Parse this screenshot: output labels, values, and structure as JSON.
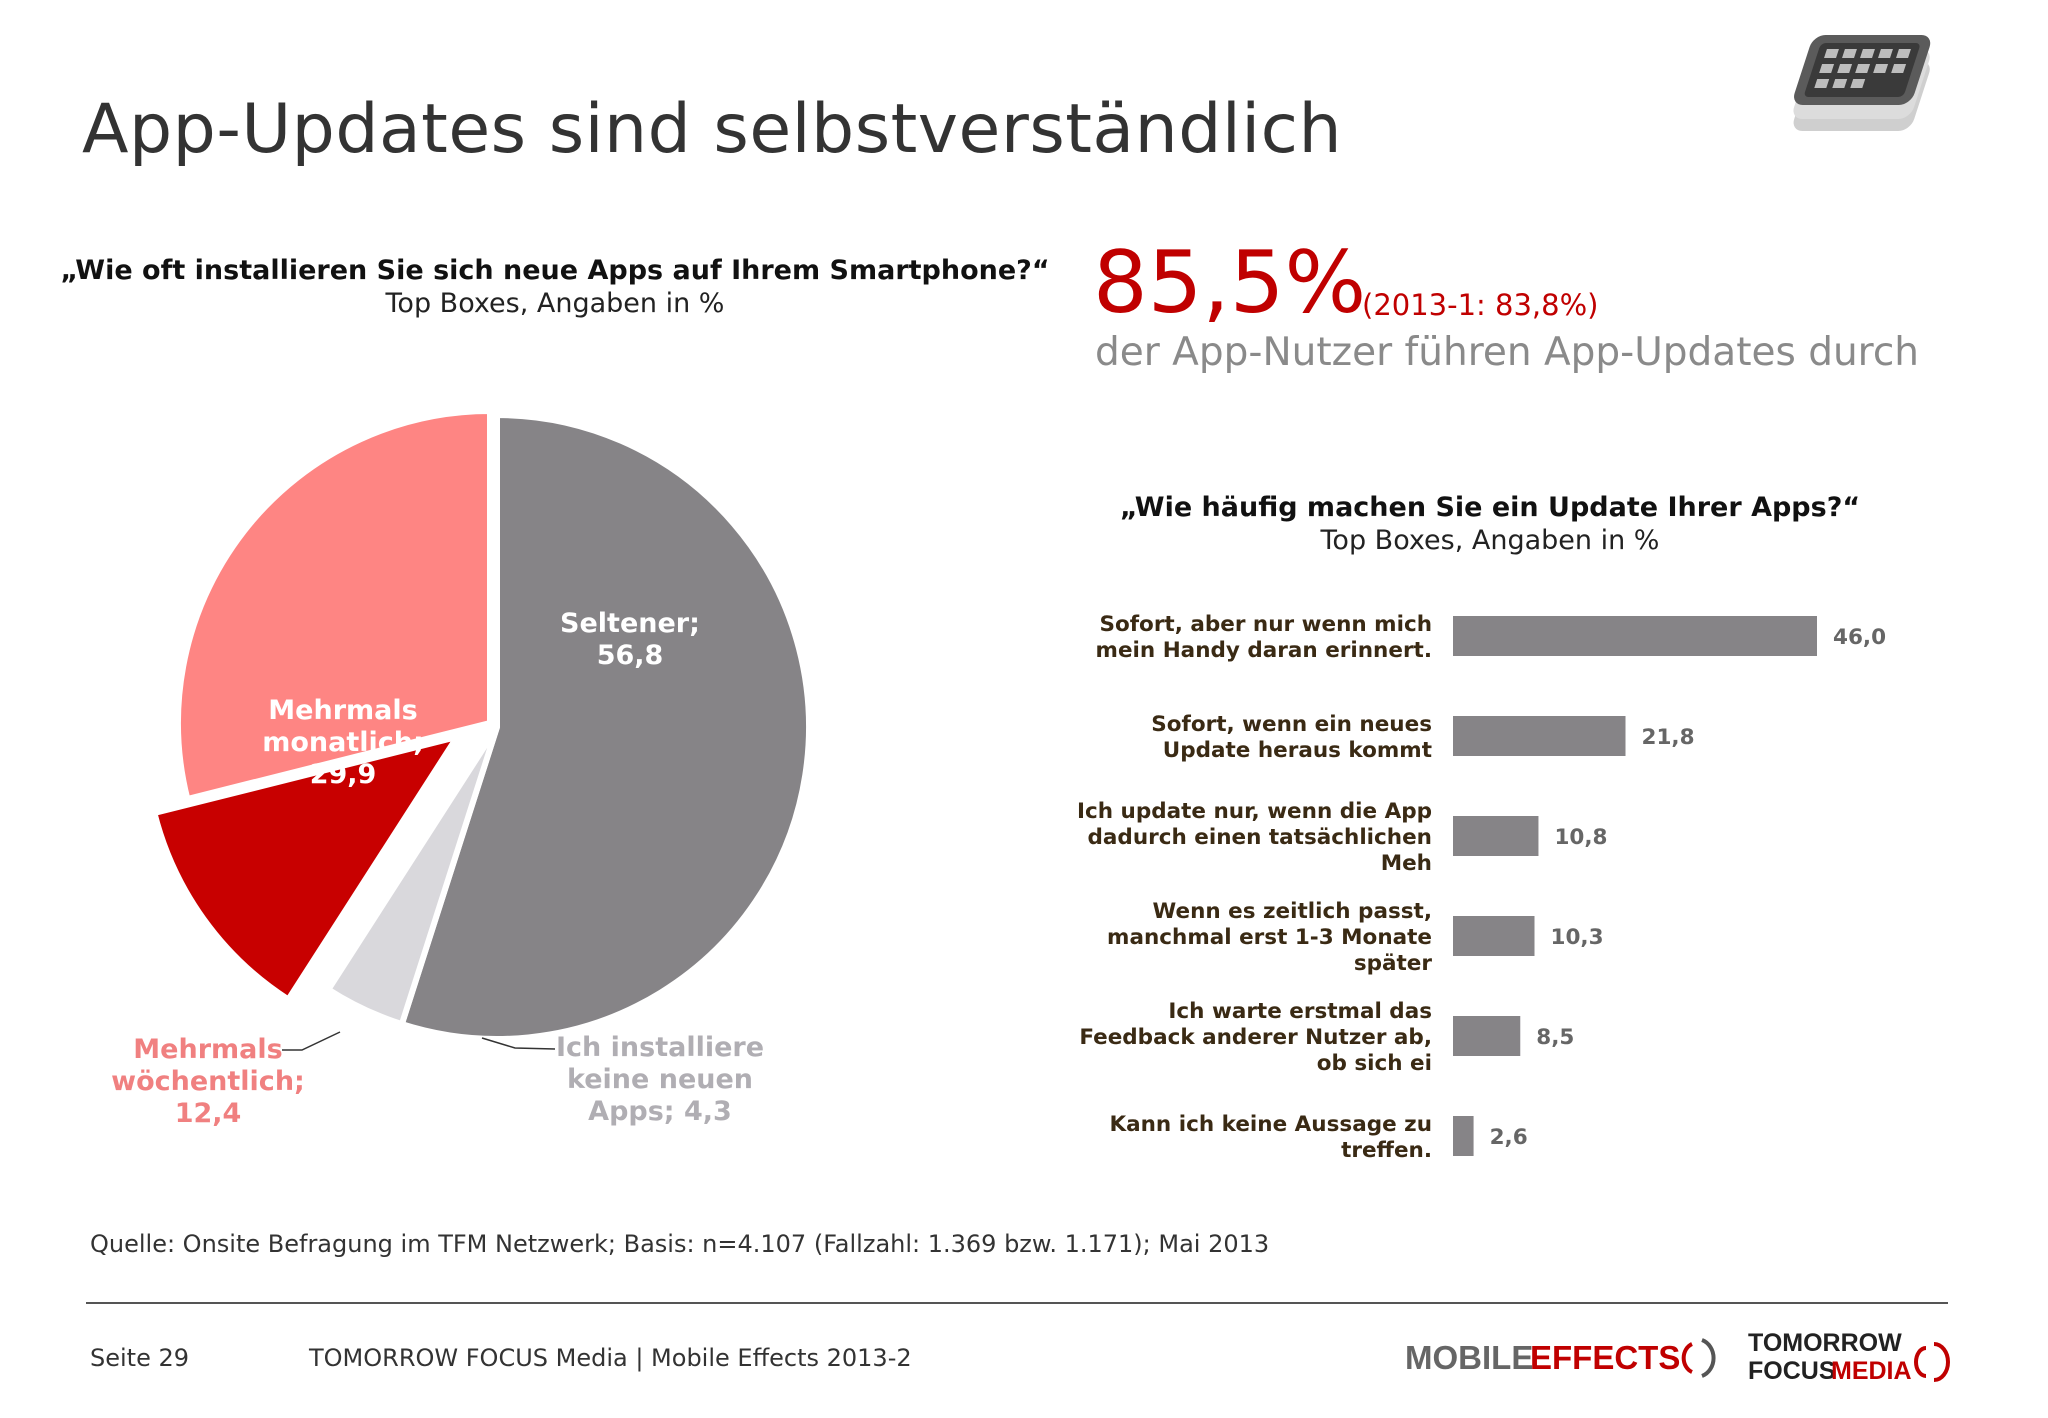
{
  "title": "App-Updates sind selbstverständlich",
  "pie_question": {
    "title": "„Wie oft installieren Sie sich neue Apps auf Ihrem Smartphone?“",
    "subtitle": "Top Boxes, Angaben in %"
  },
  "kpi": {
    "value": "85,5%",
    "compare": "(2013-1: 83,8%)",
    "description": "der App-Nutzer führen App-Updates durch"
  },
  "bar_question": {
    "title": "„Wie häufig machen Sie ein Update Ihrer Apps?“",
    "subtitle": "Top Boxes, Angaben in %"
  },
  "chart_data": [
    {
      "type": "pie",
      "unit": "%",
      "slices": [
        {
          "lines": [
            "Seltener;",
            "56,8"
          ],
          "value": 56.8,
          "color": "#868487",
          "label_color": "#ffffff"
        },
        {
          "lines": [
            "Ich installiere",
            "keine neuen",
            "Apps; 4,3"
          ],
          "value": 4.3,
          "color": "#d9d8dc",
          "label_color": "#b0aeb3"
        },
        {
          "lines": [
            "Mehrmals",
            "wöchentlich;",
            "12,4"
          ],
          "value": 12.4,
          "color": "#c80000",
          "label_color": "#f08080"
        },
        {
          "lines": [
            "Mehrmals",
            "monatlich;",
            "29,9"
          ],
          "value": 29.9,
          "color": "#fe8583",
          "label_color": "#ffffff"
        }
      ]
    },
    {
      "type": "bar",
      "orientation": "horizontal",
      "unit": "%",
      "bar_color": "#868487",
      "categories": [
        [
          "Sofort, aber nur wenn mich",
          "mein Handy daran erinnert."
        ],
        [
          "Sofort, wenn ein neues",
          "Update heraus kommt"
        ],
        [
          "Ich update nur, wenn die App",
          "dadurch einen tatsächlichen",
          "Meh"
        ],
        [
          "Wenn es zeitlich passt,",
          "manchmal erst 1-3 Monate",
          "später"
        ],
        [
          "Ich warte erstmal das",
          "Feedback anderer Nutzer ab,",
          "ob sich ei"
        ],
        [
          "Kann ich keine Aussage zu",
          "treffen."
        ]
      ],
      "values": [
        46.0,
        21.8,
        10.8,
        10.3,
        8.5,
        2.6
      ],
      "value_labels": [
        "46,0",
        "21,8",
        "10,8",
        "10,3",
        "8,5",
        "2,6"
      ],
      "xlim": [
        0,
        46
      ]
    }
  ],
  "source_note": "Quelle: Onsite Befragung im TFM Netzwerk; Basis: n=4.107 (Fallzahl: 1.369 bzw. 1.171); Mai 2013",
  "footer": {
    "page": "Seite 29",
    "text": "TOMORROW FOCUS Media | Mobile Effects 2013-2",
    "logo_mobile": "MOBILE",
    "logo_effects": "EFFECTS",
    "logo_tomorrow": "TOMORROW",
    "logo_focus": "FOCUS",
    "logo_media": "MEDIA"
  },
  "colors": {
    "accent": "#c00000",
    "text_gray": "#8a8a8a"
  },
  "icons": [
    "smartphone-stack-icon"
  ]
}
